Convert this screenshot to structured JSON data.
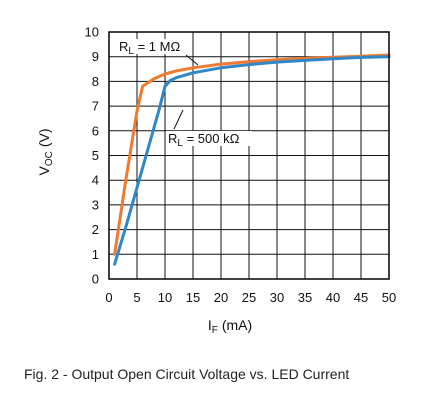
{
  "chart_data": {
    "type": "line",
    "xlabel_main": "I",
    "xlabel_sub": "F",
    "xlabel_unit": "(mA)",
    "ylabel_main": "V",
    "ylabel_sub": "OC",
    "ylabel_unit": "(V)",
    "xlim": [
      0,
      50
    ],
    "ylim": [
      0,
      10
    ],
    "x_ticks": [
      "0",
      "5",
      "10",
      "15",
      "20",
      "25",
      "30",
      "35",
      "40",
      "45",
      "50"
    ],
    "y_ticks": [
      "0",
      "1",
      "2",
      "3",
      "4",
      "5",
      "6",
      "7",
      "8",
      "9",
      "10"
    ],
    "grid": true,
    "series": [
      {
        "name": "R_L = 1 MΩ",
        "label_main": "R",
        "label_sub": "L",
        "label_rest": " = 1 MΩ",
        "color": "#f07a30",
        "x": [
          1,
          3,
          5,
          6,
          7,
          8,
          10,
          12,
          15,
          20,
          25,
          30,
          35,
          40,
          45,
          50
        ],
        "y": [
          1.0,
          4.0,
          6.8,
          7.8,
          7.95,
          8.1,
          8.3,
          8.42,
          8.55,
          8.7,
          8.8,
          8.88,
          8.93,
          8.98,
          9.02,
          9.07
        ]
      },
      {
        "name": "R_L = 500 kΩ",
        "label_main": "R",
        "label_sub": "L",
        "label_rest": " = 500 kΩ",
        "color": "#2f86c8",
        "x": [
          1,
          3,
          5,
          7,
          9,
          10,
          11,
          12,
          15,
          20,
          25,
          30,
          35,
          40,
          45,
          50
        ],
        "y": [
          0.6,
          2.1,
          3.7,
          5.3,
          6.9,
          7.8,
          8.05,
          8.15,
          8.35,
          8.55,
          8.68,
          8.78,
          8.85,
          8.92,
          8.97,
          9.0
        ]
      }
    ]
  },
  "caption": "Fig. 2 - Output Open Circuit Voltage vs. LED Current"
}
